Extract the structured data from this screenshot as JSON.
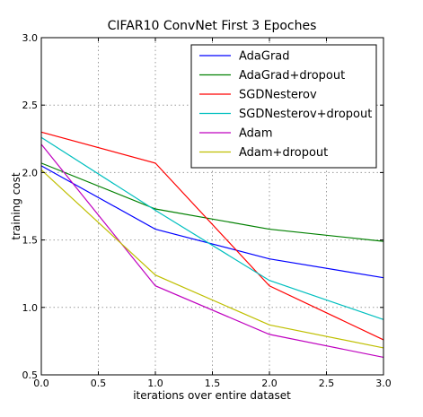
{
  "chart_data": {
    "type": "line",
    "title": "CIFAR10 ConvNet First 3 Epoches",
    "xlabel": "iterations over entire dataset",
    "ylabel": "training cost",
    "xlim": [
      0.0,
      3.0
    ],
    "ylim": [
      0.5,
      3.0
    ],
    "xticks": [
      "0.0",
      "0.5",
      "1.0",
      "1.5",
      "2.0",
      "2.5",
      "3.0"
    ],
    "yticks": [
      "0.5",
      "1.0",
      "1.5",
      "2.0",
      "2.5",
      "3.0"
    ],
    "grid": true,
    "legend_position": "top-right",
    "x": [
      0,
      1,
      2,
      3
    ],
    "series": [
      {
        "name": "AdaGrad",
        "color": "#0000ff",
        "values": [
          2.05,
          1.58,
          1.36,
          1.22
        ]
      },
      {
        "name": "AdaGrad+dropout",
        "color": "#008000",
        "values": [
          2.07,
          1.73,
          1.58,
          1.49
        ]
      },
      {
        "name": "SGDNesterov",
        "color": "#ff0000",
        "values": [
          2.3,
          2.07,
          1.16,
          0.76
        ]
      },
      {
        "name": "SGDNesterov+dropout",
        "color": "#00bfbf",
        "values": [
          2.26,
          1.72,
          1.2,
          0.91
        ]
      },
      {
        "name": "Adam",
        "color": "#bf00bf",
        "values": [
          2.21,
          1.16,
          0.8,
          0.63
        ]
      },
      {
        "name": "Adam+dropout",
        "color": "#bfbf00",
        "values": [
          2.02,
          1.24,
          0.87,
          0.7
        ]
      }
    ]
  }
}
